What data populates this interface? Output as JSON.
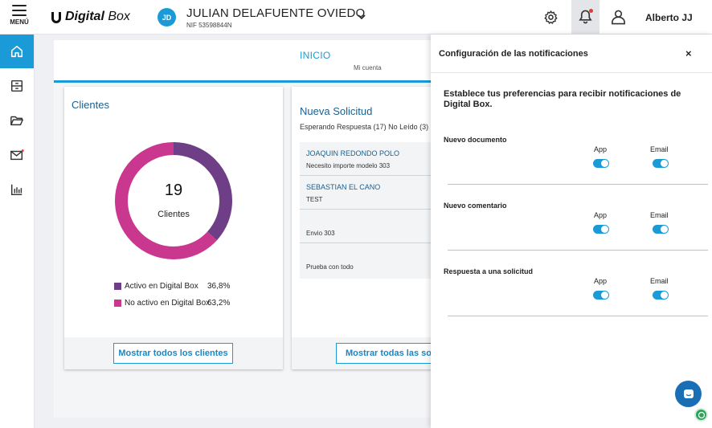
{
  "header": {
    "menu_label": "MENÚ",
    "brand_prefix": "Digital",
    "brand_suffix": "Box",
    "avatar_initials": "JD",
    "client_name": "JULIAN DELAFUENTE OVIEDO",
    "client_nif": "NIF 53598844N",
    "user_name": "Alberto JJ",
    "icons": [
      "gear-icon",
      "bell-icon",
      "person-icon",
      "chevron-down-icon"
    ],
    "notification_dot_color": "#e53935"
  },
  "sidebar": {
    "items": [
      {
        "icon": "home-icon",
        "active": true
      },
      {
        "icon": "archive-icon",
        "active": false
      },
      {
        "icon": "folder-open-icon",
        "active": false
      },
      {
        "icon": "mail-icon",
        "active": false
      },
      {
        "icon": "bar-chart-icon",
        "active": false
      }
    ],
    "accent_color": "#1a9ad6"
  },
  "main": {
    "tab_title": "INICIO",
    "tab_subtitle": "Mi cuenta"
  },
  "clientes_card": {
    "title": "Clientes",
    "total": "19",
    "total_label": "Clientes",
    "legend": [
      {
        "label": "Activo en Digital Box",
        "pct": "36,8%",
        "color": "#6e3f86"
      },
      {
        "label": "No activo en Digital Box",
        "pct": "63,2%",
        "color": "#c9378f"
      }
    ],
    "button_label": "Mostrar todos los clientes"
  },
  "chart_data": {
    "type": "pie",
    "categories": [
      "Activo en Digital Box",
      "No activo en Digital Box"
    ],
    "values": [
      36.8,
      63.2
    ],
    "title": "Clientes",
    "center_value": 19
  },
  "solicitud_card": {
    "title": "Nueva Solicitud",
    "filters": "Esperando Respuesta (17)   No Leído (3)",
    "items": [
      {
        "name": "JOAQUIN REDONDO POLO",
        "desc": "Necesito importe modelo 303"
      },
      {
        "name": "SEBASTIAN EL CANO",
        "desc": "TEST"
      },
      {
        "name": "",
        "desc": "Envio 303"
      },
      {
        "name": "",
        "desc": "Prueba con todo"
      }
    ],
    "button_label": "Mostrar todas las solicitudes"
  },
  "panel": {
    "title": "Configuración de las notificaciones",
    "close_label": "×",
    "intro": "Establece tus preferencias para recibir notificaciones de Digital Box.",
    "col_app": "App",
    "col_email": "Email",
    "rows": [
      {
        "label": "Nuevo documento",
        "app": true,
        "email": true
      },
      {
        "label": "Nuevo comentario",
        "app": true,
        "email": true
      },
      {
        "label": "Respuesta a una solicitud",
        "app": true,
        "email": true
      }
    ]
  }
}
